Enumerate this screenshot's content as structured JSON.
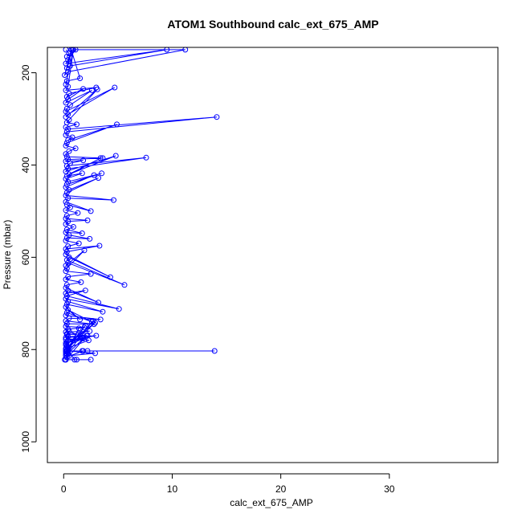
{
  "chart_data": {
    "type": "line",
    "title": "ATOM1 Southbound calc_ext_675_AMP",
    "xlabel": "calc_ext_675_AMP",
    "ylabel": "Pressure (mbar)",
    "xlim": [
      -1.5,
      40
    ],
    "ylim": [
      1045,
      145
    ],
    "y_reversed": true,
    "x_ticks": [
      0,
      10,
      20,
      30
    ],
    "y_ticks": [
      200,
      400,
      600,
      800,
      1000
    ],
    "grid": false,
    "legend": "none",
    "colors": {
      "series": "#0000ff",
      "axis": "#000000"
    },
    "marker": "open-circle",
    "series": [
      {
        "x": [
          0.2,
          0.5,
          0.3,
          1.1,
          0.4,
          0.2,
          9.5,
          0.6,
          0.3,
          0.8,
          11.2,
          0.4,
          0.1,
          0.7,
          1.5,
          0.3,
          0.2,
          0.9,
          0.4,
          0.2,
          3.0,
          0.5,
          0.3,
          1.8,
          0.4,
          0.2,
          2.6,
          0.6,
          0.3,
          0.2,
          4.7,
          0.4,
          0.2,
          3.1,
          0.5,
          0.3,
          1.2,
          0.2,
          0.4,
          14.1,
          0.3,
          0.2,
          0.8,
          0.4,
          4.9,
          0.3,
          0.2,
          1.1,
          0.5,
          0.2,
          0.3,
          3.6,
          0.4,
          0.2,
          1.8,
          0.6,
          0.3,
          7.6,
          0.4,
          0.2,
          4.8,
          0.5,
          3.4,
          0.3,
          1.7,
          0.2,
          0.4,
          3.5,
          0.3,
          2.8,
          0.2,
          0.5,
          3.2,
          0.3,
          0.2,
          4.6,
          0.4,
          0.2,
          2.5,
          0.3,
          0.6,
          0.2,
          1.3,
          0.3,
          0.2,
          2.2,
          0.4,
          0.2,
          0.9,
          0.3,
          1.7,
          0.2,
          0.5,
          2.4,
          0.3,
          0.2,
          1.4,
          0.4,
          0.2,
          3.3,
          0.3,
          0.2,
          4.3,
          0.5,
          0.3,
          5.6,
          0.4,
          0.2,
          1.9,
          0.3,
          0.2,
          2.5,
          0.4,
          0.2,
          1.6,
          0.3,
          0.2,
          3.2,
          0.4,
          0.2,
          2.0,
          0.3,
          5.1,
          0.2,
          0.4,
          3.6,
          0.3,
          0.2,
          1.5,
          0.4,
          2.6,
          0.3,
          0.2,
          3.4,
          0.5,
          0.2,
          2.8,
          0.3,
          0.2,
          1.9,
          0.4,
          0.2,
          2.4,
          0.3,
          0.2,
          3.0,
          0.4,
          0.2,
          1.8,
          0.3,
          0.2,
          2.3,
          0.5,
          0.3,
          2.2,
          0.4,
          0.2,
          1.7,
          0.3,
          0.2,
          2.9,
          0.4,
          0.2,
          2.0,
          0.3,
          0.2,
          2.7,
          0.4,
          0.2,
          1.4,
          0.3,
          0.2,
          2.1,
          0.5,
          0.3,
          1.8,
          0.3,
          13.9,
          0.2,
          2.2,
          1.7,
          0.4,
          2.9,
          0.2,
          0.4,
          1.0,
          0.2,
          2.5,
          0.1,
          1.2,
          0.2
        ],
        "y": [
          150,
          158,
          165,
          150,
          172,
          180,
          150,
          185,
          190,
          150,
          150,
          198,
          205,
          150,
          212,
          218,
          225,
          150,
          230,
          238,
          232,
          245,
          252,
          235,
          258,
          265,
          238,
          270,
          278,
          284,
          232,
          290,
          296,
          236,
          302,
          308,
          312,
          318,
          322,
          296,
          328,
          335,
          340,
          346,
          312,
          352,
          358,
          364,
          370,
          376,
          382,
          385,
          388,
          392,
          390,
          396,
          402,
          384,
          408,
          414,
          380,
          420,
          385,
          424,
          418,
          430,
          436,
          418,
          442,
          422,
          448,
          454,
          428,
          460,
          466,
          476,
          472,
          480,
          500,
          486,
          492,
          498,
          504,
          510,
          516,
          520,
          522,
          528,
          534,
          540,
          548,
          546,
          552,
          560,
          558,
          564,
          570,
          576,
          582,
          575,
          588,
          594,
          643,
          600,
          606,
          660,
          612,
          618,
          585,
          624,
          630,
          636,
          642,
          648,
          654,
          660,
          666,
          698,
          672,
          678,
          672,
          684,
          712,
          690,
          696,
          718,
          702,
          708,
          735,
          714,
          740,
          720,
          726,
          735,
          732,
          738,
          745,
          744,
          750,
          752,
          756,
          762,
          760,
          768,
          774,
          770,
          780,
          786,
          776,
          792,
          798,
          780,
          760,
          766,
          770,
          772,
          778,
          776,
          784,
          790,
          742,
          796,
          800,
          748,
          802,
          804,
          738,
          806,
          808,
          754,
          810,
          812,
          770,
          814,
          816,
          803,
          803,
          803,
          803,
          803,
          803,
          803,
          808,
          814,
          800,
          822,
          822,
          822,
          822,
          822,
          822
        ]
      }
    ]
  }
}
